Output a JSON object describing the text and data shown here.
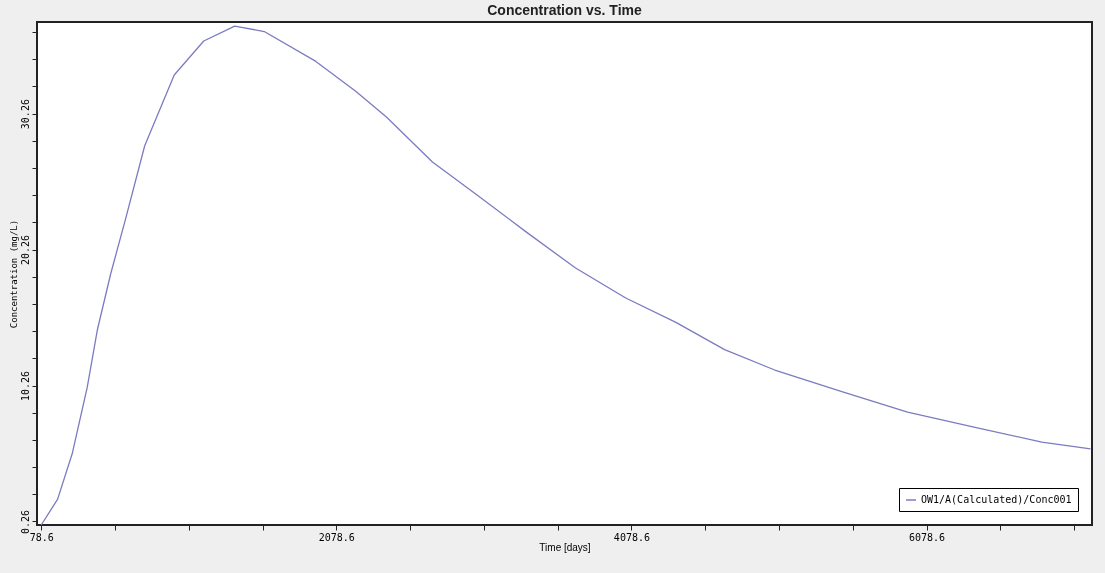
{
  "chart_data": {
    "type": "line",
    "title": "Concentration vs. Time",
    "xlabel": "Time [days]",
    "ylabel": "Concentration (mg/L)",
    "xlim": [
      50,
      7200
    ],
    "ylim": [
      0,
      37
    ],
    "xticks": [
      78.6,
      {
        "value": 578.6,
        "label": null
      },
      {
        "value": 1078.6,
        "label": null
      },
      {
        "value": 1578.6,
        "label": null
      },
      2078.6,
      {
        "value": 2578.6,
        "label": null
      },
      {
        "value": 3078.6,
        "label": null
      },
      {
        "value": 3578.6,
        "label": null
      },
      4078.6,
      {
        "value": 4578.6,
        "label": null
      },
      {
        "value": 5078.6,
        "label": null
      },
      {
        "value": 5578.6,
        "label": null
      },
      6078.6,
      {
        "value": 6578.6,
        "label": null
      },
      {
        "value": 7078.6,
        "label": null
      }
    ],
    "yticks": [
      0.26,
      {
        "value": 2.26,
        "label": null
      },
      {
        "value": 4.26,
        "label": null
      },
      {
        "value": 6.26,
        "label": null
      },
      {
        "value": 8.26,
        "label": null
      },
      10.26,
      {
        "value": 12.26,
        "label": null
      },
      {
        "value": 14.26,
        "label": null
      },
      {
        "value": 16.26,
        "label": null
      },
      {
        "value": 18.26,
        "label": null
      },
      20.26,
      {
        "value": 22.26,
        "label": null
      },
      {
        "value": 24.26,
        "label": null
      },
      {
        "value": 26.26,
        "label": null
      },
      {
        "value": 28.26,
        "label": null
      },
      30.26,
      {
        "value": 32.26,
        "label": null
      },
      {
        "value": 34.26,
        "label": null
      },
      {
        "value": 36.26,
        "label": null
      }
    ],
    "grid": false,
    "legend": "bottom right",
    "marker": "none",
    "line_style": "solid",
    "series": [
      {
        "name": "OW1/A(Calculated)/Conc001",
        "color": "#7b7bc0",
        "x": [
          78.6,
          190,
          290,
          390,
          460,
          550,
          650,
          780,
          980,
          1180,
          1390,
          1590,
          1940,
          2210,
          2420,
          2730,
          3030,
          3360,
          3700,
          4040,
          4380,
          4710,
          5050,
          5510,
          5950,
          6400,
          6860,
          7190
        ],
        "values": [
          0,
          1.9,
          5.3,
          10.1,
          14.4,
          18.5,
          22.5,
          27.9,
          33.1,
          35.6,
          36.7,
          36.3,
          34.1,
          31.9,
          30.0,
          26.7,
          24.3,
          21.6,
          18.9,
          16.7,
          14.9,
          12.9,
          11.4,
          9.8,
          8.3,
          7.2,
          6.1,
          5.6
        ]
      }
    ]
  }
}
